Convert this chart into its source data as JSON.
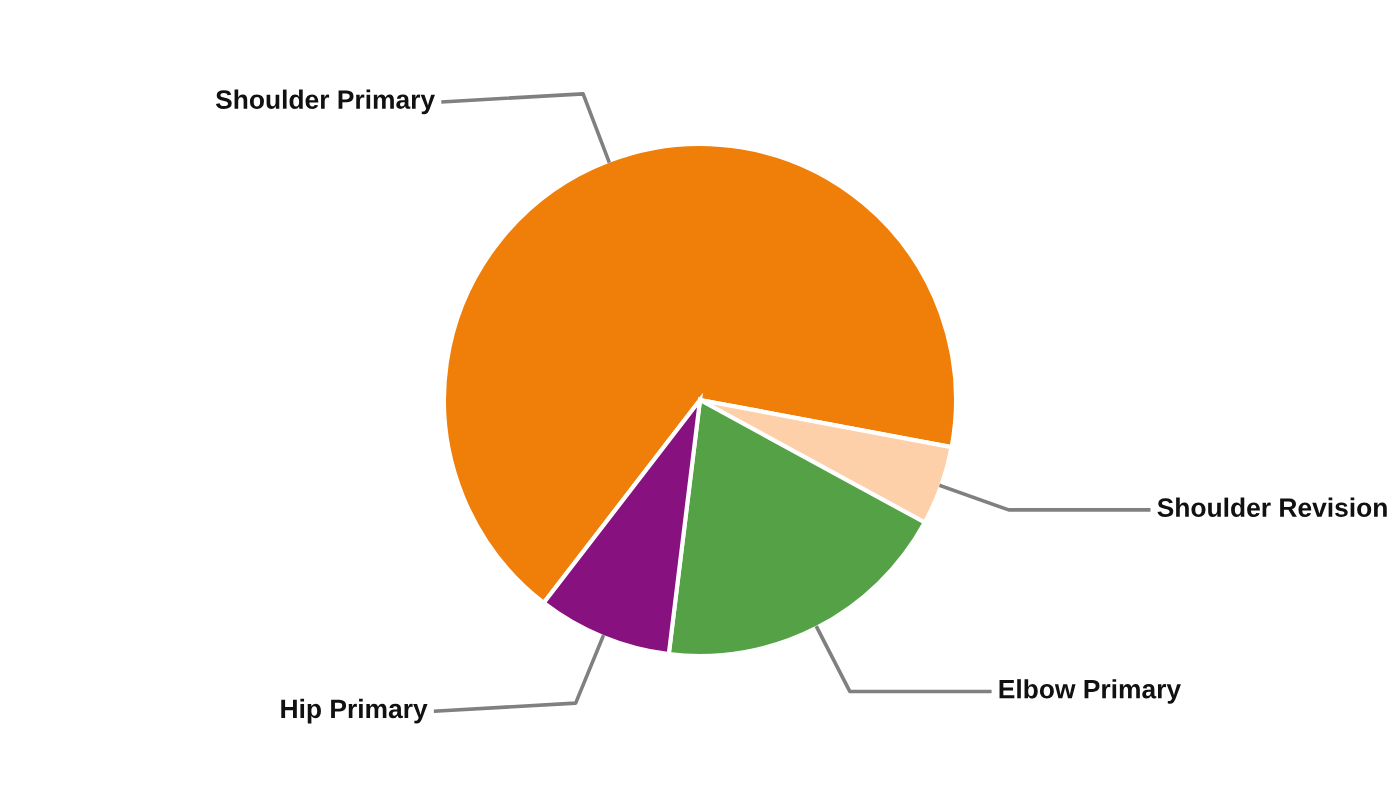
{
  "chart_data": {
    "type": "pie",
    "categories": [
      "Shoulder Primary",
      "Shoulder Revision",
      "Elbow Primary",
      "Hip Primary"
    ],
    "values": [
      67.5,
      5,
      19,
      8.5
    ],
    "colors": [
      "#f07f09",
      "#fdd0a9",
      "#55a246",
      "#87117e"
    ],
    "legend": false
  }
}
